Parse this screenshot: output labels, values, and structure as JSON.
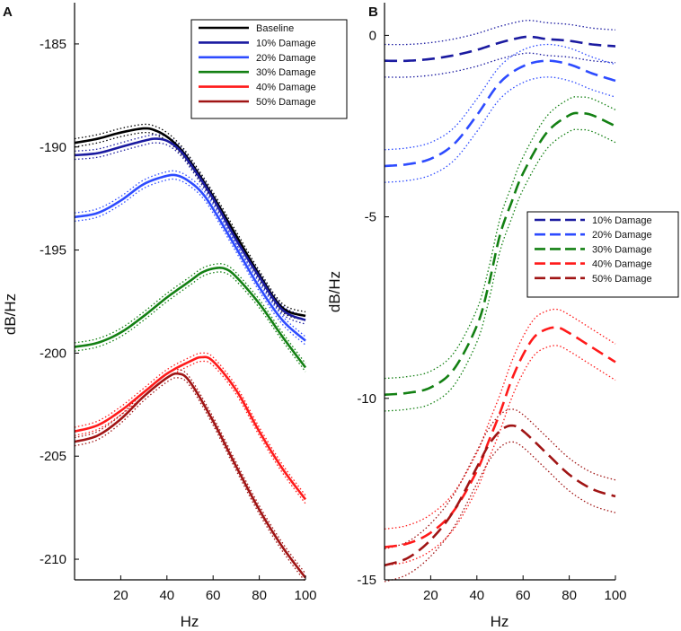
{
  "chart_data": [
    {
      "panel_label": "A",
      "type": "line",
      "xlabel": "Hz",
      "ylabel": "dB/Hz",
      "xlim": [
        0,
        100
      ],
      "ylim": [
        -211,
        -183
      ],
      "xticks": [
        20,
        40,
        60,
        80,
        100
      ],
      "yticks": [
        -185,
        -190,
        -195,
        -200,
        -205,
        -210
      ],
      "legend_placement": "top-right",
      "band_style": "dotted confidence bounds around each curve",
      "series": [
        {
          "name": "Baseline",
          "color": "#000000",
          "x": [
            0,
            10,
            20,
            30,
            35,
            40,
            45,
            50,
            60,
            70,
            80,
            90,
            100
          ],
          "y": [
            -189.8,
            -189.6,
            -189.3,
            -189.1,
            -189.2,
            -189.5,
            -190.0,
            -190.7,
            -192.4,
            -194.3,
            -196.2,
            -197.8,
            -198.2
          ],
          "band": 0.2
        },
        {
          "name": "10% Damage",
          "color": "#1a1aa0",
          "x": [
            0,
            10,
            20,
            30,
            35,
            40,
            45,
            50,
            60,
            70,
            80,
            90,
            100
          ],
          "y": [
            -190.4,
            -190.3,
            -190.0,
            -189.7,
            -189.6,
            -189.7,
            -190.1,
            -190.8,
            -192.5,
            -194.5,
            -196.3,
            -197.9,
            -198.4
          ],
          "band": 0.2
        },
        {
          "name": "20% Damage",
          "color": "#2d4bff",
          "x": [
            0,
            10,
            20,
            30,
            40,
            45,
            50,
            55,
            60,
            70,
            80,
            90,
            100
          ],
          "y": [
            -193.4,
            -193.2,
            -192.6,
            -191.8,
            -191.4,
            -191.4,
            -191.7,
            -192.2,
            -193.0,
            -194.9,
            -196.8,
            -198.4,
            -199.4
          ],
          "band": 0.2
        },
        {
          "name": "30% Damage",
          "color": "#138013",
          "x": [
            0,
            10,
            20,
            30,
            40,
            50,
            55,
            60,
            65,
            70,
            80,
            90,
            100
          ],
          "y": [
            -199.7,
            -199.5,
            -199.0,
            -198.2,
            -197.3,
            -196.5,
            -196.1,
            -195.9,
            -195.9,
            -196.3,
            -197.6,
            -199.2,
            -200.7
          ],
          "band": 0.2
        },
        {
          "name": "40% Damage",
          "color": "#ff1a1a",
          "x": [
            0,
            10,
            20,
            30,
            40,
            50,
            55,
            60,
            70,
            80,
            90,
            100
          ],
          "y": [
            -203.8,
            -203.5,
            -202.8,
            -201.9,
            -201.0,
            -200.4,
            -200.2,
            -200.4,
            -201.8,
            -203.8,
            -205.6,
            -207.1
          ],
          "band": 0.2
        },
        {
          "name": "50% Damage",
          "color": "#a01414",
          "x": [
            0,
            10,
            20,
            30,
            40,
            45,
            50,
            60,
            70,
            80,
            90,
            100
          ],
          "y": [
            -204.3,
            -204.0,
            -203.2,
            -202.1,
            -201.2,
            -201.0,
            -201.4,
            -203.3,
            -205.5,
            -207.6,
            -209.4,
            -210.9
          ],
          "band": 0.2
        }
      ]
    },
    {
      "panel_label": "B",
      "type": "line",
      "xlabel": "Hz",
      "ylabel": "dB/Hz",
      "xlim": [
        0,
        100
      ],
      "ylim": [
        -15,
        0.9
      ],
      "xticks": [
        20,
        40,
        60,
        80,
        100
      ],
      "yticks": [
        0,
        -5,
        -10,
        -15
      ],
      "legend_placement": "middle-right",
      "band_style": "dotted confidence bounds around each dashed curve",
      "series": [
        {
          "name": "10% Damage",
          "color": "#1a1aa0",
          "x": [
            0,
            10,
            20,
            30,
            40,
            50,
            60,
            65,
            70,
            80,
            90,
            100
          ],
          "y": [
            -0.7,
            -0.7,
            -0.65,
            -0.55,
            -0.4,
            -0.2,
            -0.05,
            -0.05,
            -0.1,
            -0.15,
            -0.25,
            -0.3
          ],
          "band": 0.45
        },
        {
          "name": "20% Damage",
          "color": "#2d4bff",
          "x": [
            0,
            10,
            20,
            30,
            40,
            50,
            60,
            70,
            80,
            90,
            100
          ],
          "y": [
            -3.6,
            -3.55,
            -3.4,
            -3.0,
            -2.2,
            -1.3,
            -0.85,
            -0.7,
            -0.8,
            -1.05,
            -1.25
          ],
          "band": 0.45
        },
        {
          "name": "30% Damage",
          "color": "#138013",
          "x": [
            0,
            10,
            20,
            30,
            40,
            45,
            50,
            55,
            60,
            70,
            80,
            85,
            90,
            100
          ],
          "y": [
            -9.9,
            -9.85,
            -9.7,
            -9.2,
            -8.0,
            -6.9,
            -5.5,
            -4.6,
            -3.8,
            -2.7,
            -2.2,
            -2.15,
            -2.2,
            -2.5
          ],
          "band": 0.45
        },
        {
          "name": "40% Damage",
          "color": "#ff1a1a",
          "x": [
            0,
            10,
            20,
            30,
            40,
            45,
            50,
            55,
            60,
            65,
            70,
            75,
            80,
            90,
            100
          ],
          "y": [
            -14.1,
            -14.0,
            -13.7,
            -13.1,
            -12.0,
            -11.2,
            -10.4,
            -9.5,
            -8.8,
            -8.3,
            -8.1,
            -8.05,
            -8.2,
            -8.6,
            -9.0
          ],
          "band": 0.5
        },
        {
          "name": "50% Damage",
          "color": "#a01414",
          "x": [
            0,
            10,
            20,
            30,
            40,
            45,
            50,
            55,
            60,
            70,
            80,
            90,
            100
          ],
          "y": [
            -14.6,
            -14.4,
            -13.9,
            -13.1,
            -11.9,
            -11.3,
            -10.9,
            -10.75,
            -10.9,
            -11.5,
            -12.1,
            -12.5,
            -12.7
          ],
          "band": 0.45
        }
      ]
    }
  ]
}
